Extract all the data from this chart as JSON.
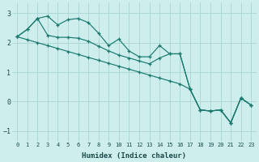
{
  "xlabel": "Humidex (Indice chaleur)",
  "ylabel": "",
  "background_color": "#ceeeed",
  "grid_color": "#aed8d5",
  "line_color": "#1a7a6e",
  "xlim": [
    -0.5,
    23.5
  ],
  "ylim": [
    -1.35,
    3.35
  ],
  "yticks": [
    -1,
    0,
    1,
    2,
    3
  ],
  "xticks": [
    0,
    1,
    2,
    3,
    4,
    5,
    6,
    7,
    8,
    9,
    10,
    11,
    12,
    13,
    14,
    15,
    16,
    17,
    18,
    19,
    20,
    21,
    22,
    23
  ],
  "series": [
    [
      2.2,
      2.45,
      2.82,
      2.9,
      2.6,
      2.78,
      2.82,
      2.68,
      2.32,
      1.9,
      2.12,
      1.72,
      1.52,
      1.52,
      1.9,
      1.62,
      1.62,
      0.42,
      -0.28,
      -0.32,
      -0.28,
      -0.72,
      0.12,
      -0.12
    ],
    [
      2.2,
      2.45,
      2.82,
      2.25,
      2.18,
      2.18,
      2.15,
      2.05,
      1.88,
      1.72,
      1.58,
      1.48,
      1.38,
      1.28,
      1.48,
      1.62,
      1.62,
      0.42,
      -0.28,
      -0.32,
      -0.28,
      -0.72,
      0.12,
      -0.12
    ],
    [
      2.2,
      2.1,
      2.0,
      1.9,
      1.8,
      1.7,
      1.6,
      1.5,
      1.4,
      1.3,
      1.2,
      1.1,
      1.0,
      0.9,
      0.8,
      0.7,
      0.6,
      0.42,
      -0.28,
      -0.32,
      -0.28,
      -0.72,
      0.12,
      -0.12
    ]
  ]
}
